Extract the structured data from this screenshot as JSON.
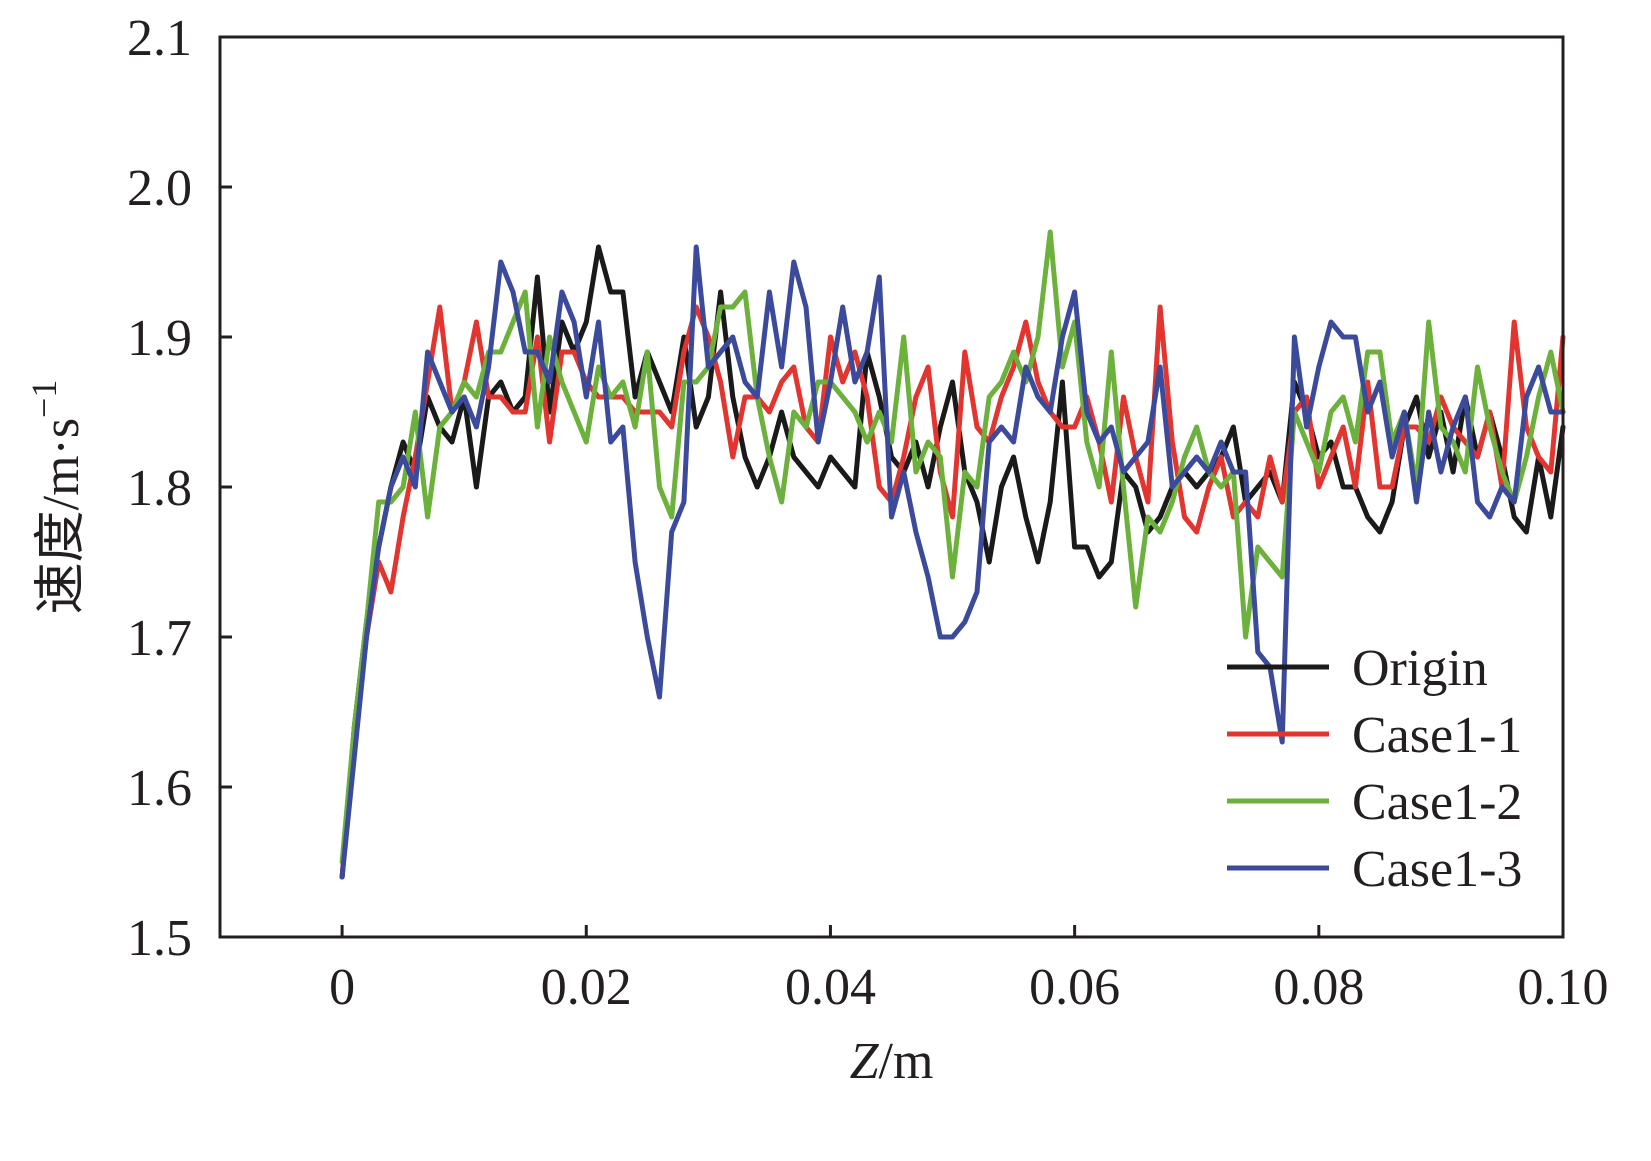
{
  "chart_data": {
    "type": "line",
    "xlabel_italic": "Z",
    "xlabel_rest": "/m",
    "ylabel_main": "速度/m·s",
    "ylabel_sup": "−1",
    "xlim": [
      -0.01,
      0.1
    ],
    "ylim": [
      1.5,
      2.1
    ],
    "x_ticks": [
      0,
      0.02,
      0.04,
      0.06,
      0.08,
      0.1
    ],
    "x_tick_labels": [
      "0",
      "0.02",
      "0.04",
      "0.06",
      "0.08",
      "0.10"
    ],
    "y_ticks": [
      1.5,
      1.6,
      1.7,
      1.8,
      1.9,
      2.0,
      2.1
    ],
    "y_tick_labels": [
      "1.5",
      "1.6",
      "1.7",
      "1.8",
      "1.9",
      "2.0",
      "2.1"
    ],
    "grid": false,
    "legend_position": "bottom-right",
    "x": [
      0,
      0.001,
      0.002,
      0.003,
      0.004,
      0.005,
      0.006,
      0.007,
      0.008,
      0.009,
      0.01,
      0.011,
      0.012,
      0.013,
      0.014,
      0.015,
      0.016,
      0.017,
      0.018,
      0.019,
      0.02,
      0.021,
      0.022,
      0.023,
      0.024,
      0.025,
      0.026,
      0.027,
      0.028,
      0.029,
      0.03,
      0.031,
      0.032,
      0.033,
      0.034,
      0.035,
      0.036,
      0.037,
      0.038,
      0.039,
      0.04,
      0.041,
      0.042,
      0.043,
      0.044,
      0.045,
      0.046,
      0.047,
      0.048,
      0.049,
      0.05,
      0.051,
      0.052,
      0.053,
      0.054,
      0.055,
      0.056,
      0.057,
      0.058,
      0.059,
      0.06,
      0.061,
      0.062,
      0.063,
      0.064,
      0.065,
      0.066,
      0.067,
      0.068,
      0.069,
      0.07,
      0.071,
      0.072,
      0.073,
      0.074,
      0.075,
      0.076,
      0.077,
      0.078,
      0.079,
      0.08,
      0.081,
      0.082,
      0.083,
      0.084,
      0.085,
      0.086,
      0.087,
      0.088,
      0.089,
      0.09,
      0.091,
      0.092,
      0.093,
      0.094,
      0.095,
      0.096,
      0.097,
      0.098,
      0.099,
      0.1
    ],
    "series": [
      {
        "name": "Origin",
        "color": "#1a1a1a",
        "values": [
          1.54,
          1.64,
          1.71,
          1.76,
          1.8,
          1.83,
          1.81,
          1.86,
          1.84,
          1.83,
          1.86,
          1.8,
          1.86,
          1.87,
          1.85,
          1.86,
          1.94,
          1.85,
          1.91,
          1.89,
          1.91,
          1.96,
          1.93,
          1.93,
          1.86,
          1.89,
          1.87,
          1.85,
          1.9,
          1.84,
          1.86,
          1.93,
          1.86,
          1.82,
          1.8,
          1.82,
          1.85,
          1.82,
          1.81,
          1.8,
          1.82,
          1.81,
          1.8,
          1.89,
          1.86,
          1.82,
          1.81,
          1.83,
          1.8,
          1.84,
          1.87,
          1.81,
          1.79,
          1.75,
          1.8,
          1.82,
          1.78,
          1.75,
          1.79,
          1.87,
          1.76,
          1.76,
          1.74,
          1.75,
          1.81,
          1.8,
          1.77,
          1.78,
          1.8,
          1.81,
          1.8,
          1.81,
          1.82,
          1.84,
          1.79,
          1.8,
          1.81,
          1.79,
          1.87,
          1.85,
          1.82,
          1.83,
          1.8,
          1.8,
          1.78,
          1.77,
          1.79,
          1.84,
          1.86,
          1.82,
          1.85,
          1.81,
          1.86,
          1.82,
          1.85,
          1.82,
          1.78,
          1.77,
          1.82,
          1.78,
          1.84
        ]
      },
      {
        "name": "Case1-1",
        "color": "#e2352f",
        "values": [
          1.54,
          1.63,
          1.7,
          1.75,
          1.73,
          1.78,
          1.82,
          1.87,
          1.92,
          1.85,
          1.87,
          1.91,
          1.86,
          1.86,
          1.85,
          1.85,
          1.9,
          1.83,
          1.89,
          1.89,
          1.87,
          1.86,
          1.86,
          1.86,
          1.85,
          1.85,
          1.85,
          1.84,
          1.89,
          1.92,
          1.9,
          1.87,
          1.82,
          1.86,
          1.86,
          1.85,
          1.87,
          1.88,
          1.84,
          1.83,
          1.9,
          1.87,
          1.89,
          1.86,
          1.8,
          1.79,
          1.82,
          1.86,
          1.88,
          1.81,
          1.78,
          1.89,
          1.84,
          1.83,
          1.86,
          1.88,
          1.91,
          1.87,
          1.85,
          1.84,
          1.84,
          1.86,
          1.83,
          1.79,
          1.86,
          1.82,
          1.79,
          1.92,
          1.83,
          1.78,
          1.77,
          1.8,
          1.82,
          1.78,
          1.79,
          1.78,
          1.82,
          1.79,
          1.85,
          1.86,
          1.8,
          1.82,
          1.84,
          1.8,
          1.87,
          1.8,
          1.8,
          1.84,
          1.84,
          1.83,
          1.86,
          1.84,
          1.83,
          1.82,
          1.85,
          1.8,
          1.91,
          1.84,
          1.82,
          1.81,
          1.9
        ]
      },
      {
        "name": "Case1-2",
        "color": "#6cb13c",
        "values": [
          1.55,
          1.64,
          1.71,
          1.79,
          1.79,
          1.8,
          1.85,
          1.78,
          1.84,
          1.85,
          1.87,
          1.86,
          1.89,
          1.89,
          1.91,
          1.93,
          1.84,
          1.9,
          1.87,
          1.85,
          1.83,
          1.88,
          1.86,
          1.87,
          1.84,
          1.89,
          1.8,
          1.78,
          1.87,
          1.87,
          1.88,
          1.92,
          1.92,
          1.93,
          1.86,
          1.82,
          1.79,
          1.85,
          1.84,
          1.87,
          1.87,
          1.86,
          1.85,
          1.83,
          1.85,
          1.83,
          1.9,
          1.81,
          1.83,
          1.82,
          1.74,
          1.81,
          1.8,
          1.86,
          1.87,
          1.89,
          1.87,
          1.9,
          1.97,
          1.88,
          1.91,
          1.83,
          1.8,
          1.89,
          1.8,
          1.72,
          1.78,
          1.77,
          1.79,
          1.82,
          1.84,
          1.81,
          1.8,
          1.81,
          1.7,
          1.76,
          1.75,
          1.74,
          1.85,
          1.83,
          1.81,
          1.85,
          1.86,
          1.83,
          1.89,
          1.89,
          1.83,
          1.85,
          1.8,
          1.91,
          1.84,
          1.83,
          1.81,
          1.88,
          1.84,
          1.81,
          1.79,
          1.82,
          1.86,
          1.89,
          1.85
        ]
      },
      {
        "name": "Case1-3",
        "color": "#3b4a9b",
        "values": [
          1.54,
          1.62,
          1.7,
          1.76,
          1.8,
          1.82,
          1.8,
          1.89,
          1.87,
          1.85,
          1.86,
          1.84,
          1.88,
          1.95,
          1.93,
          1.89,
          1.89,
          1.87,
          1.93,
          1.91,
          1.86,
          1.91,
          1.83,
          1.84,
          1.75,
          1.7,
          1.66,
          1.77,
          1.79,
          1.96,
          1.88,
          1.89,
          1.9,
          1.87,
          1.86,
          1.93,
          1.88,
          1.95,
          1.92,
          1.83,
          1.87,
          1.92,
          1.87,
          1.89,
          1.94,
          1.78,
          1.81,
          1.77,
          1.74,
          1.7,
          1.7,
          1.71,
          1.73,
          1.83,
          1.84,
          1.83,
          1.88,
          1.86,
          1.85,
          1.9,
          1.93,
          1.85,
          1.83,
          1.84,
          1.81,
          1.82,
          1.83,
          1.88,
          1.8,
          1.81,
          1.82,
          1.81,
          1.83,
          1.81,
          1.81,
          1.69,
          1.68,
          1.63,
          1.9,
          1.84,
          1.88,
          1.91,
          1.9,
          1.9,
          1.85,
          1.87,
          1.82,
          1.85,
          1.79,
          1.85,
          1.81,
          1.84,
          1.86,
          1.79,
          1.78,
          1.8,
          1.79,
          1.86,
          1.88,
          1.85,
          1.85
        ]
      }
    ]
  }
}
